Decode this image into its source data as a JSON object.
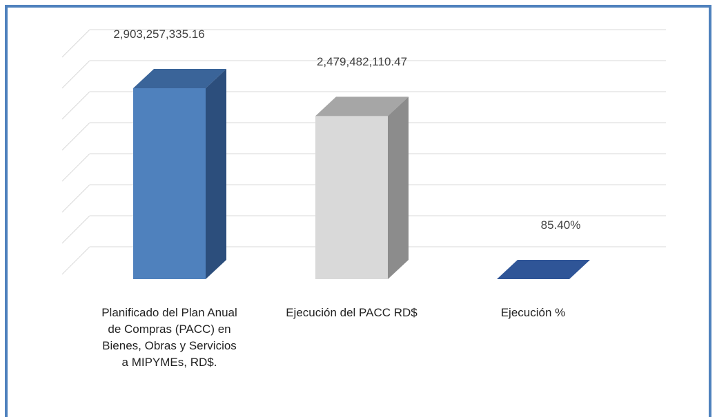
{
  "chart_data": {
    "type": "bar3d",
    "categories": [
      "Planificado del Plan Anual de Compras (PACC) en Bienes, Obras y Servicios a MIPYMEs, RD$.",
      "Ejecución del PACC RD$",
      "Ejecución %"
    ],
    "values": [
      2903257335.16,
      2479482110.47,
      85.4
    ],
    "value_labels": [
      "2,903,257,335.16",
      "2,479,482,110.47",
      "85.40%"
    ],
    "colors": [
      [
        "#4f81bd",
        "#3a6499",
        "#2c4e7c"
      ],
      [
        "#d9d9d9",
        "#a6a6a6",
        "#8c8c8c"
      ],
      [
        "#2f5597",
        "#2f5597",
        "#1f3d70"
      ]
    ],
    "grid": true
  }
}
